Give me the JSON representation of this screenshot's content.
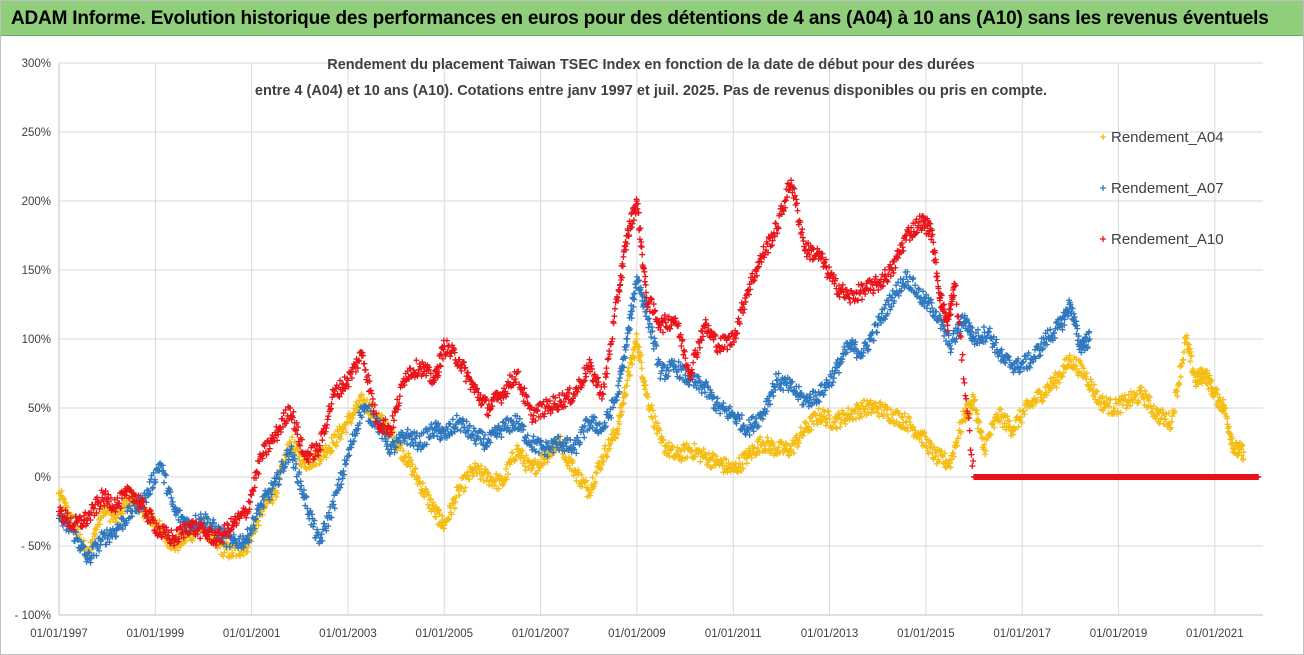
{
  "banner": {
    "title": "ADAM Informe. Evolution historique des performances en euros pour des détentions de 4 ans (A04) à 10 ans (A10) sans les revenus éventuels"
  },
  "colors": {
    "A04": "#f5bd12",
    "A07": "#2f78c0",
    "A10": "#e8141a",
    "banner": "#8fce7a",
    "grid": "#d9d9d9"
  },
  "chart_data": {
    "type": "scatter",
    "title_lines": [
      "Rendement du placement Taiwan TSEC Index en fonction de la date de début pour des durées",
      "entre 4 (A04) et 10 ans (A10). Cotations entre janv 1997 et juil. 2025. Pas de revenus disponibles ou pris en compte."
    ],
    "y_ticks": [
      "300%",
      "250%",
      "200%",
      "150%",
      "100%",
      "50%",
      "0%",
      "- 50%",
      "- 100%"
    ],
    "x_ticks": [
      "01/01/1997",
      "01/01/1999",
      "01/01/2001",
      "01/01/2003",
      "01/01/2005",
      "01/01/2007",
      "01/01/2009",
      "01/01/2011",
      "01/01/2013",
      "01/01/2015",
      "01/01/2017",
      "01/01/2019",
      "01/01/2021"
    ],
    "ylim": [
      -100,
      300
    ],
    "xlim": [
      1997.0,
      2022.0
    ],
    "grid": true,
    "legend_position": "right",
    "series": [
      {
        "name": "Rendement_A04",
        "key": "A04",
        "x": [
          1997.0,
          1997.3,
          1997.6,
          1997.9,
          1998.2,
          1998.5,
          1998.8,
          1999.1,
          1999.4,
          1999.7,
          2000.0,
          2000.3,
          2000.6,
          2000.9,
          2001.2,
          2001.5,
          2001.8,
          2002.1,
          2002.4,
          2002.7,
          2003.0,
          2003.3,
          2003.6,
          2003.9,
          2004.2,
          2004.5,
          2004.8,
          2005.0,
          2005.3,
          2005.6,
          2005.9,
          2006.2,
          2006.5,
          2006.8,
          2007.1,
          2007.4,
          2007.7,
          2008.0,
          2008.3,
          2008.6,
          2008.8,
          2009.0,
          2009.2,
          2009.5,
          2009.8,
          2010.1,
          2010.4,
          2010.7,
          2011.0,
          2011.3,
          2011.6,
          2011.9,
          2012.2,
          2012.5,
          2012.8,
          2013.1,
          2013.4,
          2013.7,
          2014.0,
          2014.3,
          2014.6,
          2014.9,
          2015.2,
          2015.5,
          2015.8,
          2016.0,
          2016.2,
          2016.5,
          2016.8,
          2017.1,
          2017.4,
          2017.7,
          2018.0,
          2018.3,
          2018.6,
          2018.9,
          2019.2,
          2019.5,
          2019.8,
          2020.1,
          2020.4,
          2020.6,
          2020.8,
          2021.0,
          2021.2,
          2021.4,
          2021.6
        ],
        "y": [
          -12,
          -35,
          -58,
          -22,
          -30,
          -15,
          -25,
          -38,
          -50,
          -42,
          -35,
          -50,
          -55,
          -50,
          -25,
          -10,
          25,
          10,
          15,
          25,
          40,
          55,
          45,
          30,
          15,
          -5,
          -25,
          -35,
          -10,
          5,
          0,
          -5,
          20,
          5,
          15,
          25,
          5,
          -10,
          15,
          35,
          70,
          100,
          60,
          25,
          15,
          20,
          15,
          10,
          5,
          15,
          25,
          20,
          20,
          35,
          45,
          40,
          45,
          50,
          50,
          45,
          40,
          30,
          15,
          10,
          45,
          55,
          20,
          45,
          35,
          50,
          60,
          70,
          85,
          75,
          55,
          50,
          55,
          60,
          45,
          40,
          100,
          70,
          75,
          60,
          50,
          20,
          18
        ]
      },
      {
        "name": "Rendement_A07",
        "key": "A07",
        "x": [
          1997.0,
          1997.3,
          1997.6,
          1997.9,
          1998.2,
          1998.5,
          1998.8,
          1999.1,
          1999.4,
          1999.7,
          2000.0,
          2000.3,
          2000.6,
          2000.9,
          2001.2,
          2001.5,
          2001.8,
          2002.1,
          2002.4,
          2002.7,
          2003.0,
          2003.3,
          2003.6,
          2003.9,
          2004.2,
          2004.5,
          2004.8,
          2005.0,
          2005.3,
          2005.6,
          2005.9,
          2006.2,
          2006.5,
          2006.8,
          2007.1,
          2007.4,
          2007.7,
          2008.0,
          2008.3,
          2008.6,
          2008.8,
          2009.0,
          2009.2,
          2009.5,
          2009.8,
          2010.1,
          2010.4,
          2010.7,
          2011.0,
          2011.3,
          2011.6,
          2011.9,
          2012.2,
          2012.5,
          2012.8,
          2013.1,
          2013.4,
          2013.7,
          2014.0,
          2014.3,
          2014.6,
          2014.9,
          2015.2,
          2015.5,
          2015.8,
          2016.0,
          2016.3,
          2016.6,
          2016.9,
          2017.2,
          2017.5,
          2017.8,
          2018.0,
          2018.2,
          2018.4
        ],
        "y": [
          -30,
          -40,
          -60,
          -45,
          -38,
          -25,
          -15,
          10,
          -25,
          -35,
          -30,
          -40,
          -48,
          -45,
          -20,
          -5,
          20,
          -15,
          -48,
          -20,
          15,
          50,
          40,
          20,
          30,
          25,
          35,
          30,
          40,
          30,
          25,
          35,
          40,
          25,
          20,
          25,
          20,
          40,
          35,
          60,
          100,
          145,
          120,
          75,
          80,
          70,
          65,
          50,
          45,
          35,
          45,
          70,
          65,
          55,
          60,
          75,
          95,
          90,
          110,
          130,
          145,
          130,
          120,
          95,
          115,
          100,
          105,
          85,
          80,
          85,
          100,
          110,
          125,
          95,
          100
        ]
      },
      {
        "name": "Rendement_A10",
        "key": "A10",
        "x": [
          1997.0,
          1997.3,
          1997.6,
          1997.9,
          1998.2,
          1998.5,
          1998.8,
          1999.1,
          1999.4,
          1999.7,
          2000.0,
          2000.3,
          2000.6,
          2000.9,
          2001.2,
          2001.5,
          2001.8,
          2002.1,
          2002.4,
          2002.7,
          2003.0,
          2003.3,
          2003.6,
          2003.9,
          2004.2,
          2004.5,
          2004.8,
          2005.0,
          2005.3,
          2005.6,
          2005.9,
          2006.2,
          2006.5,
          2006.8,
          2007.1,
          2007.4,
          2007.7,
          2008.0,
          2008.3,
          2008.6,
          2008.8,
          2009.0,
          2009.2,
          2009.5,
          2009.8,
          2010.1,
          2010.4,
          2010.7,
          2011.0,
          2011.3,
          2011.6,
          2011.9,
          2012.2,
          2012.5,
          2012.8,
          2013.1,
          2013.4,
          2013.7,
          2014.0,
          2014.3,
          2014.6,
          2014.9,
          2015.1,
          2015.3,
          2015.45,
          2015.6,
          2016.0,
          2016.5,
          2017.0,
          2017.5,
          2018.0,
          2018.5,
          2019.0,
          2019.5,
          2020.0,
          2020.5,
          2021.0,
          2021.5,
          2021.9
        ],
        "y": [
          -25,
          -35,
          -30,
          -15,
          -20,
          -10,
          -25,
          -40,
          -45,
          -35,
          -40,
          -45,
          -35,
          -25,
          15,
          30,
          50,
          15,
          20,
          60,
          70,
          90,
          40,
          35,
          75,
          80,
          70,
          95,
          85,
          65,
          50,
          60,
          75,
          45,
          50,
          55,
          60,
          80,
          60,
          130,
          175,
          200,
          130,
          110,
          115,
          75,
          110,
          95,
          100,
          135,
          160,
          180,
          215,
          165,
          160,
          140,
          130,
          135,
          140,
          150,
          175,
          185,
          180,
          130,
          110,
          140,
          0,
          0,
          0,
          0,
          0,
          0,
          0,
          0,
          0,
          0,
          0,
          0,
          0
        ]
      }
    ]
  }
}
